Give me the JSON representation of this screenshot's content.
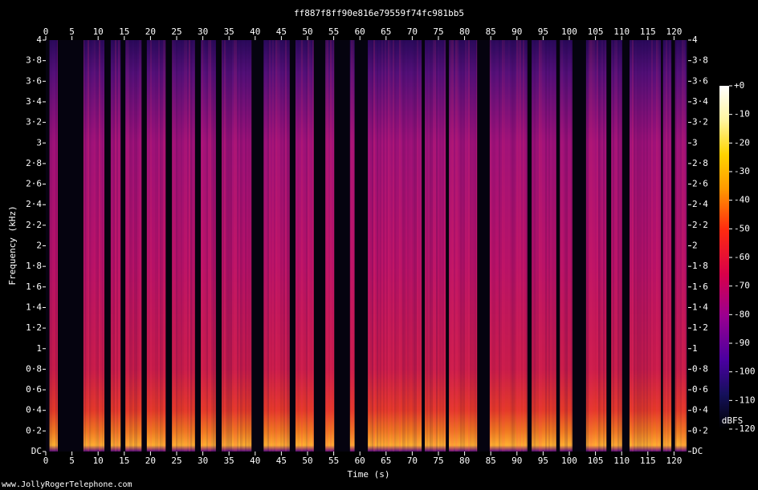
{
  "chart_data": {
    "type": "spectrogram",
    "title": "ff887f8ff90e816e79559f74fc981bb5",
    "x_label": "Time (s)",
    "y_label": "Frequency (kHz)",
    "xlim": [
      0,
      122.7
    ],
    "xticks": [
      0,
      5,
      10,
      15,
      20,
      25,
      30,
      35,
      40,
      45,
      50,
      55,
      60,
      65,
      70,
      75,
      80,
      85,
      90,
      95,
      100,
      105,
      110,
      115,
      120
    ],
    "ylim": [
      0,
      4
    ],
    "yticks": [
      {
        "value": 0,
        "label": "DC"
      },
      {
        "value": 0.2,
        "label": "0·2"
      },
      {
        "value": 0.4,
        "label": "0·4"
      },
      {
        "value": 0.6,
        "label": "0·6"
      },
      {
        "value": 0.8,
        "label": "0·8"
      },
      1,
      {
        "value": 1.2,
        "label": "1·2"
      },
      {
        "value": 1.4,
        "label": "1·4"
      },
      {
        "value": 1.6,
        "label": "1·6"
      },
      {
        "value": 1.8,
        "label": "1·8"
      },
      2,
      {
        "value": 2.2,
        "label": "2·2"
      },
      {
        "value": 2.4,
        "label": "2·4"
      },
      {
        "value": 2.6,
        "label": "2·6"
      },
      {
        "value": 2.8,
        "label": "2·8"
      },
      3,
      {
        "value": 3.2,
        "label": "3·2"
      },
      {
        "value": 3.4,
        "label": "3·4"
      },
      {
        "value": 3.6,
        "label": "3·6"
      },
      {
        "value": 3.8,
        "label": "3·8"
      },
      4
    ],
    "colorbar": {
      "label": "dBFS",
      "zlim": [
        -120,
        0
      ],
      "ticks": [
        {
          "value": 0,
          "label": "+0"
        },
        -10,
        -20,
        -30,
        -40,
        -50,
        -60,
        -70,
        -80,
        -90,
        -100,
        -110,
        -120
      ]
    },
    "silent_intervals": [
      [
        0,
        0.7
      ],
      [
        2.3,
        7.2
      ],
      [
        11.2,
        12.4
      ],
      [
        14.3,
        15.2
      ],
      [
        18.3,
        19.3
      ],
      [
        22.9,
        24.1
      ],
      [
        28.5,
        29.6
      ],
      [
        32.5,
        33.6
      ],
      [
        39.3,
        41.6
      ],
      [
        46.6,
        47.7
      ],
      [
        51.2,
        53.4
      ],
      [
        55.1,
        58.1
      ],
      [
        59.0,
        61.5
      ],
      [
        71.8,
        72.4
      ],
      [
        76.4,
        77.0
      ],
      [
        82.4,
        84.8
      ],
      [
        92.0,
        92.8
      ],
      [
        97.5,
        98.2
      ],
      [
        100.6,
        103.2
      ],
      [
        107.1,
        108.0
      ],
      [
        110.1,
        111.5
      ],
      [
        117.5,
        117.9
      ],
      [
        119.5,
        120.2
      ],
      [
        122.4,
        122.7
      ]
    ]
  },
  "footer": "www.JollyRogerTelephone.com"
}
